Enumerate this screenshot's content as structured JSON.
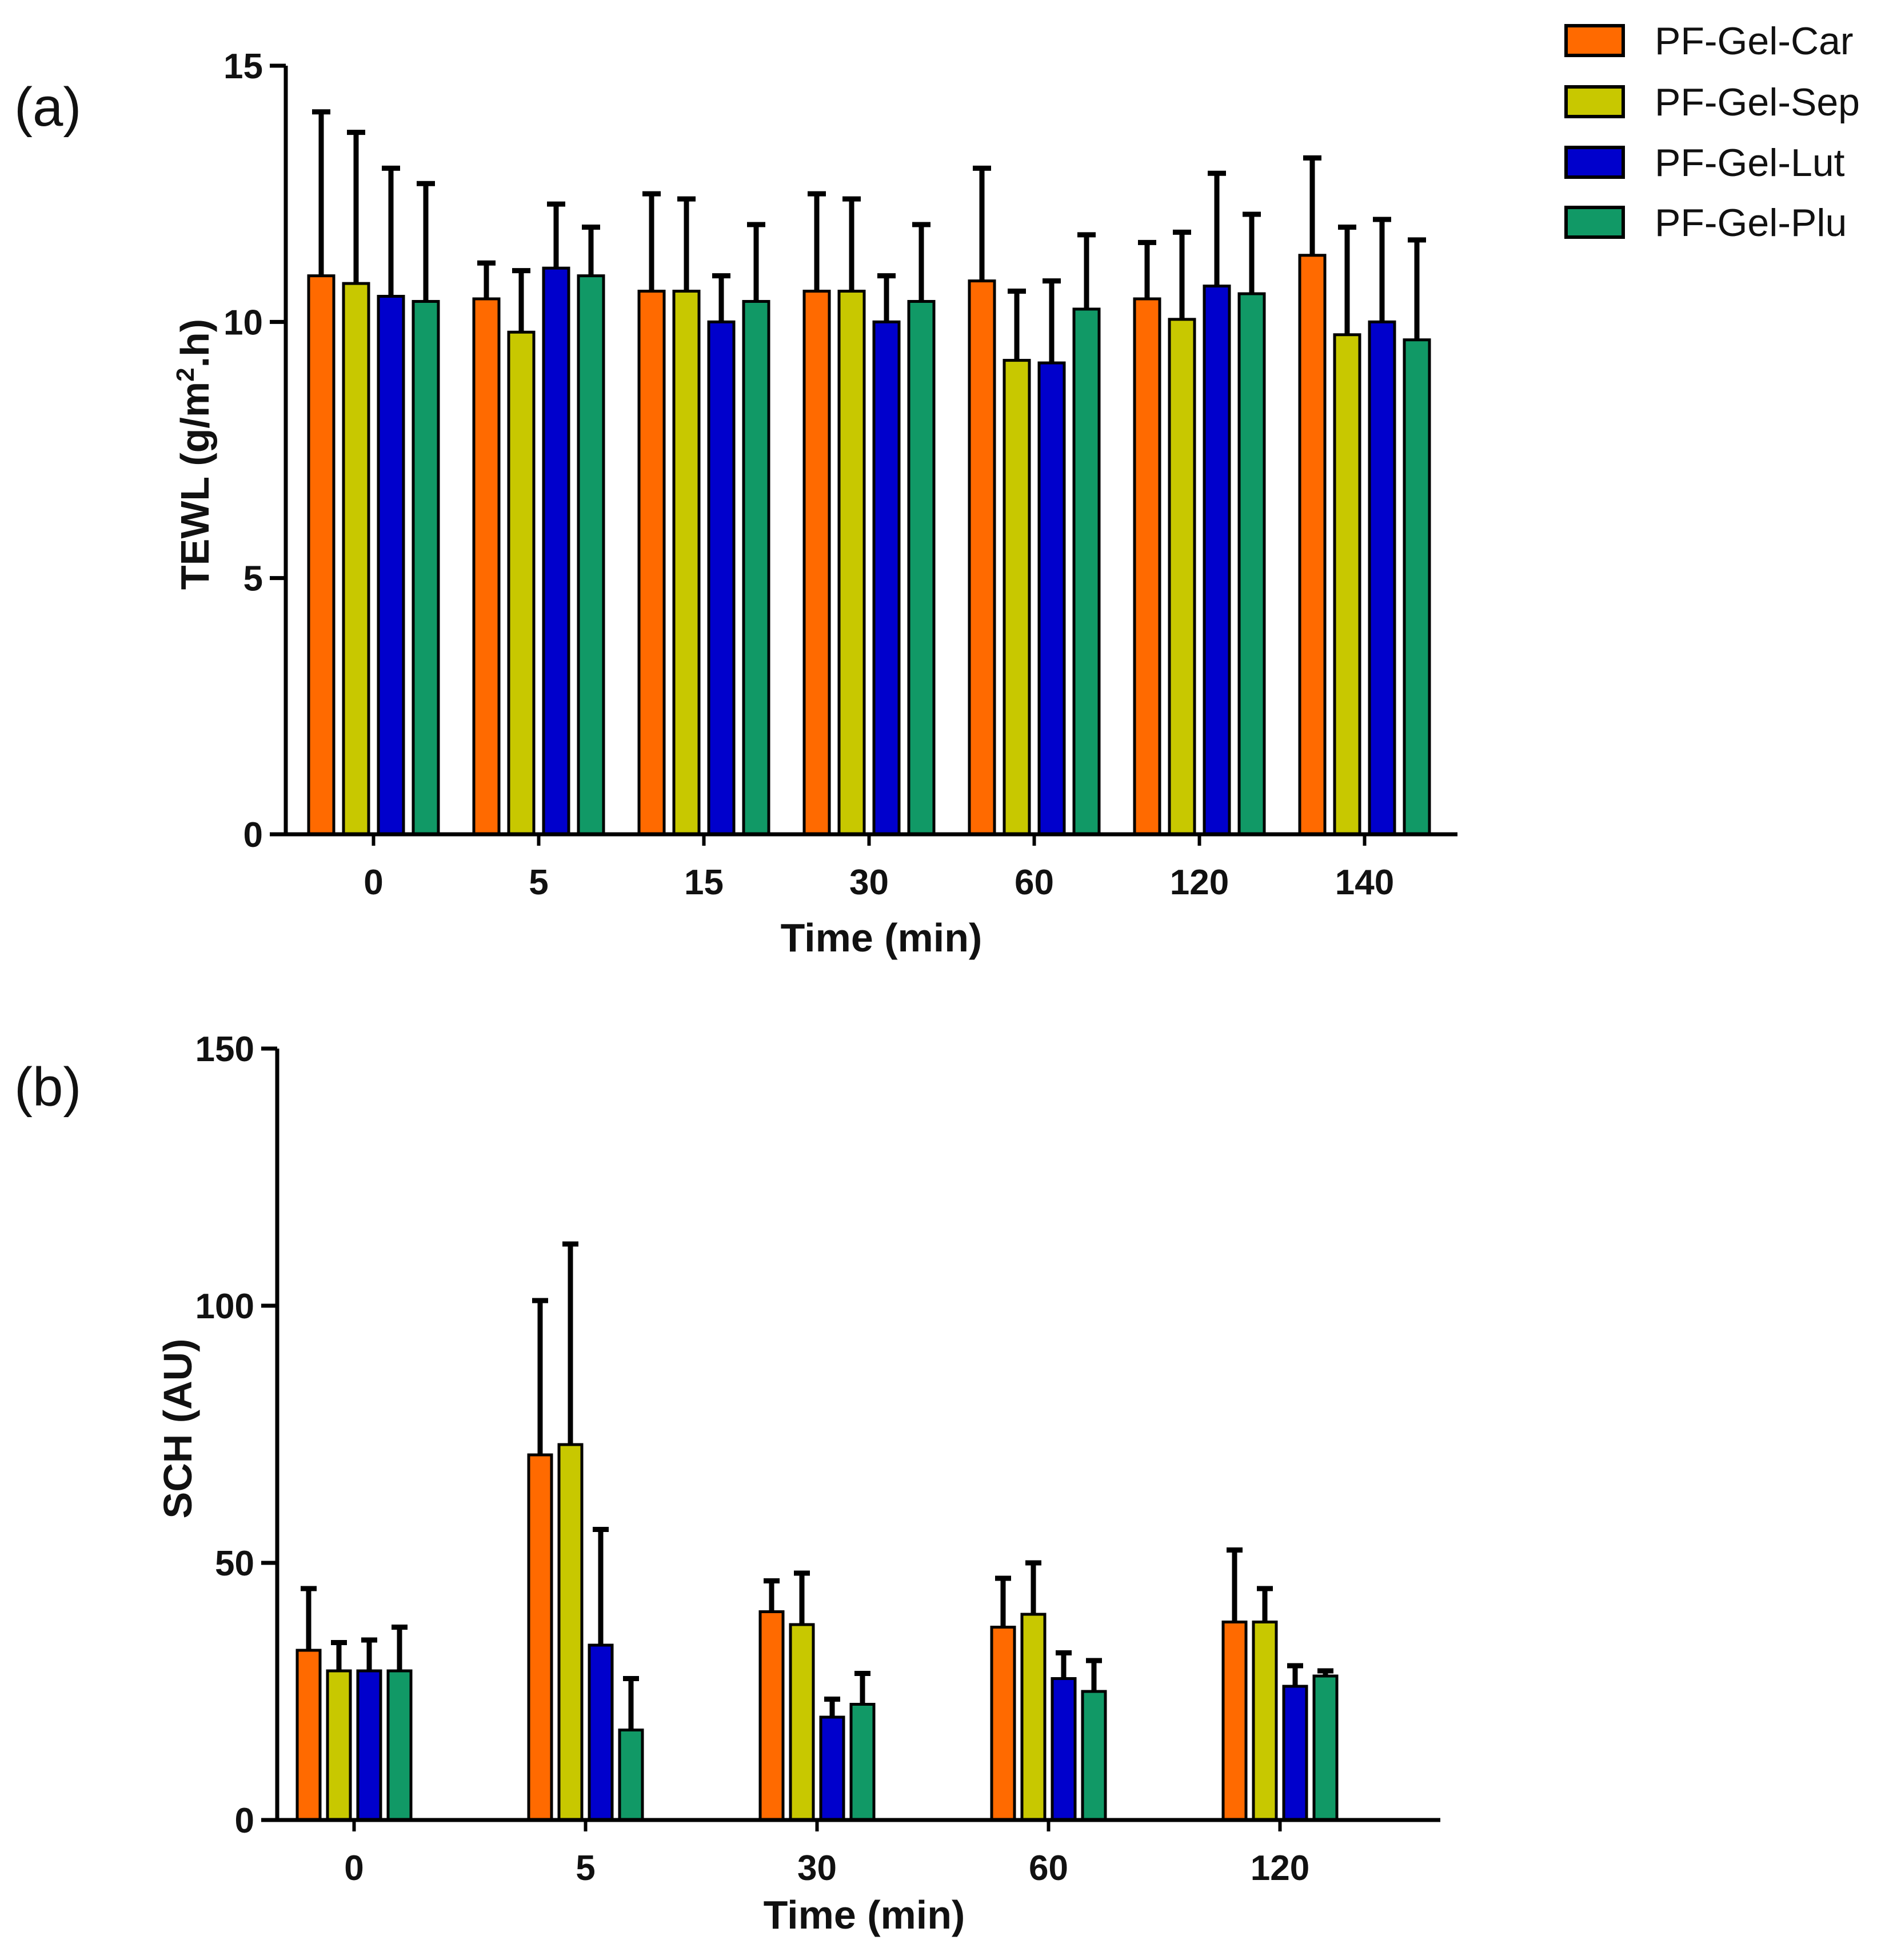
{
  "chart_data": [
    {
      "type": "bar",
      "panel_label": "(a)",
      "ylabel": "TEWL (g/m",
      "ylabel_sup": "2",
      "ylabel_end": ".h)",
      "xlabel": "Time (min)",
      "categories": [
        "0",
        "5",
        "15",
        "30",
        "60",
        "120",
        "140"
      ],
      "ylim": [
        0,
        15
      ],
      "yticks": [
        "0",
        "5",
        "10",
        "15"
      ],
      "series": [
        {
          "name": "PF-Gel-Car",
          "values": [
            10.9,
            10.45,
            10.6,
            10.6,
            10.8,
            10.45,
            11.3
          ],
          "errors": [
            3.2,
            0.7,
            1.9,
            1.9,
            2.2,
            1.1,
            1.9
          ]
        },
        {
          "name": "PF-Gel-Sep",
          "values": [
            10.75,
            9.8,
            10.6,
            10.6,
            9.25,
            10.05,
            9.75
          ],
          "errors": [
            2.95,
            1.2,
            1.8,
            1.8,
            1.35,
            1.7,
            2.1
          ]
        },
        {
          "name": "PF-Gel-Lut",
          "values": [
            10.5,
            11.05,
            10.0,
            10.0,
            9.2,
            10.7,
            10.0
          ],
          "errors": [
            2.5,
            1.25,
            0.9,
            0.9,
            1.6,
            2.2,
            2.0
          ]
        },
        {
          "name": "PF-Gel-Plu",
          "values": [
            10.4,
            10.9,
            10.4,
            10.4,
            10.25,
            10.55,
            9.65
          ],
          "errors": [
            2.3,
            0.95,
            1.5,
            1.5,
            1.45,
            1.55,
            1.95
          ]
        }
      ]
    },
    {
      "type": "bar",
      "panel_label": "(b)",
      "ylabel": "SCH (AU)",
      "xlabel": "Time (min)",
      "categories": [
        "0",
        "5",
        "30",
        "60",
        "120"
      ],
      "ylim": [
        0,
        150
      ],
      "yticks": [
        "0",
        "50",
        "100",
        "150"
      ],
      "series": [
        {
          "name": "PF-Gel-Car",
          "values": [
            33,
            71,
            40.5,
            37.5,
            38.5
          ],
          "errors": [
            12,
            30,
            6,
            9.5,
            14
          ]
        },
        {
          "name": "PF-Gel-Sep",
          "values": [
            29,
            73,
            38,
            40,
            38.5
          ],
          "errors": [
            5.5,
            39,
            10,
            10,
            6.5
          ]
        },
        {
          "name": "PF-Gel-Lut",
          "values": [
            29,
            34,
            20,
            27.5,
            26
          ],
          "errors": [
            6,
            22.5,
            3.5,
            5,
            4
          ]
        },
        {
          "name": "PF-Gel-Plu",
          "values": [
            29,
            17.5,
            22.5,
            25,
            28
          ],
          "errors": [
            8.5,
            10,
            6,
            6,
            1
          ]
        }
      ]
    }
  ],
  "legend": [
    {
      "label": "PF-Gel-Car",
      "color": "#ff6a00"
    },
    {
      "label": "PF-Gel-Sep",
      "color": "#c8c800"
    },
    {
      "label": "PF-Gel-Lut",
      "color": "#0000cc"
    },
    {
      "label": "PF-Gel-Plu",
      "color": "#119966"
    }
  ]
}
